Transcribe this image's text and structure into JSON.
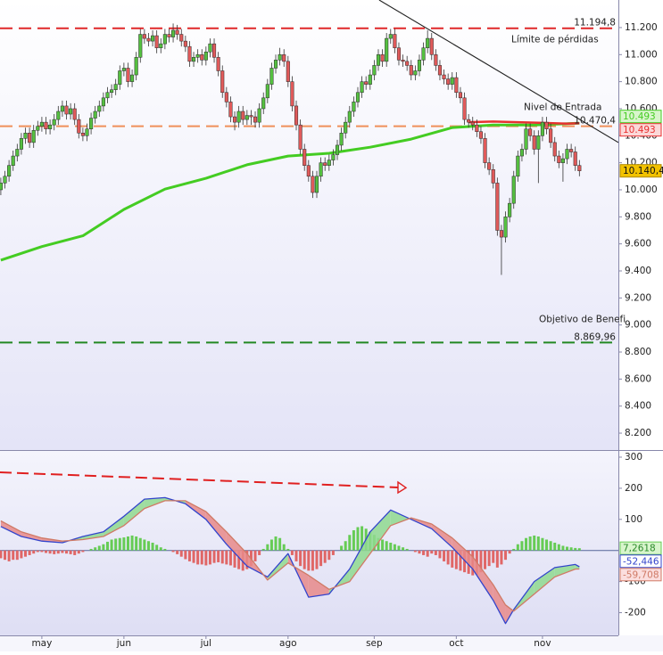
{
  "chart_data": [
    {
      "type": "candlestick",
      "xlim": [
        -0.2,
        150.5
      ],
      "ylim": [
        8075,
        11404
      ],
      "yticks": [
        {
          "value": 8200,
          "label": "8.200"
        },
        {
          "value": 8400,
          "label": "8.400"
        },
        {
          "value": 8600,
          "label": "8.600"
        },
        {
          "value": 8800,
          "label": "8.800"
        },
        {
          "value": 9000,
          "label": "9.000"
        },
        {
          "value": 9200,
          "label": "9.200"
        },
        {
          "value": 9400,
          "label": "9.400"
        },
        {
          "value": 9600,
          "label": "9.600"
        },
        {
          "value": 9800,
          "label": "9.800"
        },
        {
          "value": 10000,
          "label": "10.000"
        },
        {
          "value": 10200,
          "label": "10.200"
        },
        {
          "value": 10400,
          "label": "10.400"
        },
        {
          "value": 10600,
          "label": "10.600"
        },
        {
          "value": 10800,
          "label": "10.800"
        },
        {
          "value": 11000,
          "label": "11.000"
        },
        {
          "value": 11200,
          "label": "11.200"
        }
      ],
      "color_up": "#55c040",
      "color_down": "#e05a5a",
      "open": [
        10000,
        10050,
        10100,
        10180,
        10250,
        10300,
        10380,
        10420,
        10350,
        10440,
        10470,
        10500,
        10450,
        10480,
        10520,
        10580,
        10620,
        10560,
        10600,
        10520,
        10420,
        10400,
        10450,
        10530,
        10580,
        10620,
        10680,
        10720,
        10740,
        10780,
        10880,
        10900,
        10800,
        10850,
        10980,
        11150,
        11120,
        11100,
        11140,
        11050,
        11080,
        11150,
        11130,
        11180,
        11150,
        11100,
        11060,
        10950,
        10980,
        11000,
        10960,
        11020,
        11080,
        10980,
        10880,
        10720,
        10650,
        10540,
        10500,
        10580,
        10520,
        10550,
        10540,
        10500,
        10600,
        10680,
        10780,
        10900,
        10960,
        11000,
        10950,
        10800,
        10620,
        10480,
        10300,
        10180,
        10100,
        9980,
        10100,
        10200,
        10180,
        10220,
        10260,
        10330,
        10420,
        10500,
        10580,
        10650,
        10720,
        10800,
        10780,
        10850,
        10920,
        11000,
        10950,
        11120,
        11150,
        11050,
        10960,
        10950,
        10920,
        10850,
        10880,
        10960,
        11050,
        11120,
        11000,
        10920,
        10850,
        10820,
        10780,
        10830,
        10720,
        10680,
        10520,
        10500,
        10480,
        10430,
        10380,
        10200,
        10150,
        10050,
        9700,
        9650,
        9800,
        9900,
        10100,
        10250,
        10300,
        10450,
        10400,
        10300,
        10400,
        10500,
        10450,
        10350,
        10250,
        10200,
        10230,
        10300,
        10280,
        10180
      ],
      "high": [
        10090,
        10140,
        10220,
        10290,
        10340,
        10420,
        10460,
        10460,
        10480,
        10510,
        10540,
        10540,
        10520,
        10560,
        10620,
        10660,
        10660,
        10640,
        10640,
        10560,
        10460,
        10490,
        10570,
        10620,
        10660,
        10720,
        10760,
        10780,
        10820,
        10920,
        10940,
        10940,
        10890,
        11020,
        11190,
        11190,
        11160,
        11180,
        11180,
        11120,
        11190,
        11190,
        11230,
        11220,
        11190,
        11140,
        11100,
        11020,
        11040,
        11040,
        11060,
        11120,
        11120,
        11020,
        10920,
        10760,
        10690,
        10580,
        10620,
        10620,
        10590,
        10590,
        10580,
        10640,
        10720,
        10820,
        10940,
        11000,
        11050,
        11040,
        10990,
        10840,
        10660,
        10520,
        10340,
        10220,
        10140,
        10140,
        10240,
        10240,
        10260,
        10300,
        10370,
        10460,
        10540,
        10620,
        10690,
        10760,
        10840,
        10840,
        10890,
        10960,
        11040,
        11040,
        11160,
        11190,
        11190,
        11090,
        11000,
        10990,
        10960,
        10920,
        11000,
        11090,
        11180,
        11160,
        11040,
        10960,
        10890,
        10860,
        10870,
        10870,
        10760,
        10720,
        10560,
        10540,
        10520,
        10470,
        10420,
        10240,
        10190,
        10090,
        9740,
        9840,
        9940,
        10140,
        10290,
        10340,
        10490,
        10490,
        10440,
        10440,
        10540,
        10540,
        10490,
        10390,
        10290,
        10270,
        10340,
        10340,
        10320,
        10220
      ],
      "low": [
        9960,
        10010,
        10060,
        10140,
        10210,
        10260,
        10340,
        10310,
        10310,
        10400,
        10430,
        10410,
        10410,
        10440,
        10480,
        10540,
        10520,
        10520,
        10480,
        10380,
        10360,
        10360,
        10410,
        10490,
        10540,
        10580,
        10640,
        10680,
        10700,
        10740,
        10840,
        10760,
        10760,
        10810,
        10940,
        11080,
        11060,
        11060,
        11010,
        11010,
        11040,
        11090,
        11090,
        11110,
        11060,
        11020,
        10910,
        10910,
        10940,
        10920,
        10920,
        10980,
        10940,
        10840,
        10680,
        10610,
        10500,
        10440,
        10460,
        10480,
        10480,
        10480,
        10460,
        10460,
        10560,
        10640,
        10740,
        10860,
        10920,
        10910,
        10760,
        10580,
        10440,
        10260,
        10140,
        10060,
        9940,
        9940,
        10060,
        10140,
        10140,
        10180,
        10220,
        10290,
        10380,
        10460,
        10540,
        10610,
        10680,
        10740,
        10740,
        10810,
        10880,
        10910,
        10910,
        11080,
        11010,
        10920,
        10910,
        10880,
        10810,
        10810,
        10840,
        10920,
        11010,
        10960,
        10880,
        10810,
        10780,
        10740,
        10740,
        10680,
        10640,
        10480,
        10460,
        10440,
        10390,
        10340,
        10160,
        10110,
        10010,
        9660,
        9370,
        9610,
        9760,
        9860,
        10060,
        10210,
        10260,
        10360,
        10260,
        10050,
        10360,
        10410,
        10310,
        10210,
        10160,
        10060,
        10190,
        10240,
        10140,
        10100
      ],
      "close": [
        10050,
        10100,
        10180,
        10250,
        10300,
        10380,
        10420,
        10350,
        10440,
        10470,
        10500,
        10450,
        10480,
        10520,
        10580,
        10620,
        10560,
        10600,
        10520,
        10420,
        10400,
        10450,
        10530,
        10580,
        10620,
        10680,
        10720,
        10740,
        10780,
        10880,
        10900,
        10800,
        10850,
        10980,
        11150,
        11120,
        11100,
        11140,
        11050,
        11080,
        11150,
        11130,
        11180,
        11150,
        11100,
        11060,
        10950,
        10980,
        11000,
        10960,
        11020,
        11080,
        10980,
        10880,
        10720,
        10650,
        10540,
        10500,
        10580,
        10520,
        10550,
        10540,
        10500,
        10600,
        10680,
        10780,
        10900,
        10960,
        11000,
        10950,
        10800,
        10620,
        10480,
        10300,
        10180,
        10100,
        9980,
        10100,
        10200,
        10180,
        10220,
        10260,
        10330,
        10420,
        10500,
        10580,
        10650,
        10720,
        10800,
        10780,
        10850,
        10920,
        11000,
        10950,
        11120,
        11150,
        11050,
        10960,
        10950,
        10920,
        10850,
        10880,
        10960,
        11050,
        11120,
        11000,
        10920,
        10850,
        10820,
        10780,
        10830,
        10720,
        10680,
        10520,
        10500,
        10480,
        10430,
        10380,
        10200,
        10150,
        10050,
        9700,
        9650,
        9800,
        9900,
        10100,
        10250,
        10300,
        10450,
        10400,
        10300,
        10400,
        10500,
        10450,
        10350,
        10250,
        10200,
        10230,
        10300,
        10280,
        10180,
        10140.4
      ],
      "close_label": "10.140,4",
      "close_badge_color": "#f2c200",
      "series": [
        {
          "color": "#44cc22",
          "x": [
            0,
            10,
            20,
            30,
            40,
            50,
            60,
            70,
            80,
            90,
            100,
            110,
            120,
            130,
            141
          ],
          "values": [
            9480,
            9580,
            9660,
            9855,
            10005,
            10085,
            10185,
            10250,
            10270,
            10315,
            10375,
            10460,
            10480,
            10480,
            10493
          ],
          "last_label": "10.493"
        },
        {
          "color": "#e83030",
          "x": [
            114,
            120,
            126,
            132,
            138,
            141
          ],
          "values": [
            10500,
            10505,
            10500,
            10495,
            10490,
            10493
          ],
          "last_label": "10.493"
        }
      ],
      "trendline": {
        "color": "#222222",
        "x": [
          92.2,
          150.5
        ],
        "values": [
          11404,
          10350
        ]
      },
      "levels": [
        {
          "value": 11194.8,
          "label": "11.194,8",
          "text": "Límite de pérdidas",
          "color": "#e02828"
        },
        {
          "value": 10470.4,
          "label": "10.470,4",
          "text": "Nivel de Entrada",
          "color": "#f0905a"
        },
        {
          "value": 8869.96,
          "label": "8.869,96",
          "text": "Objetivo de Benefi",
          "color": "#228822"
        }
      ]
    },
    {
      "type": "macd",
      "xlim": [
        -0.2,
        150.5
      ],
      "ylim": [
        -273,
        320
      ],
      "yticks": [
        300,
        200,
        100,
        -100,
        -200
      ],
      "xticks": [
        {
          "value": 10,
          "label": "may"
        },
        {
          "value": 30,
          "label": "jun"
        },
        {
          "value": 50,
          "label": "jul"
        },
        {
          "value": 70,
          "label": "ago"
        },
        {
          "value": 91,
          "label": "sep"
        },
        {
          "value": 111,
          "label": "oct"
        },
        {
          "value": 132,
          "label": "nov"
        }
      ],
      "histogram": {
        "color_up": "#66cc55",
        "color_down": "#e06666",
        "last_label": "7,2618",
        "values": [
          -25,
          -30,
          -35,
          -30,
          -30,
          -25,
          -20,
          -15,
          -10,
          -5,
          -5,
          -8,
          -10,
          -12,
          -10,
          -8,
          -10,
          -12,
          -15,
          -10,
          -5,
          0,
          5,
          10,
          15,
          20,
          28,
          35,
          38,
          40,
          42,
          45,
          48,
          45,
          40,
          35,
          30,
          25,
          18,
          10,
          5,
          0,
          -5,
          -12,
          -20,
          -28,
          -35,
          -40,
          -45,
          -45,
          -48,
          -45,
          -40,
          -38,
          -42,
          -45,
          -48,
          -55,
          -60,
          -65,
          -60,
          -50,
          -35,
          -15,
          5,
          20,
          35,
          45,
          40,
          20,
          5,
          -15,
          -35,
          -50,
          -60,
          -65,
          -65,
          -60,
          -50,
          -40,
          -30,
          -15,
          0,
          15,
          30,
          50,
          65,
          75,
          78,
          70,
          60,
          50,
          40,
          35,
          30,
          25,
          20,
          15,
          10,
          5,
          0,
          -5,
          -10,
          -15,
          -20,
          -10,
          -15,
          -25,
          -35,
          -45,
          -55,
          -60,
          -65,
          -70,
          -75,
          -80,
          -78,
          -70,
          -60,
          -50,
          -40,
          -55,
          -45,
          -30,
          -10,
          5,
          20,
          30,
          40,
          45,
          48,
          45,
          40,
          35,
          30,
          25,
          20,
          15,
          12,
          10,
          8,
          7.2618
        ]
      },
      "series": [
        {
          "color": "#3344cc",
          "x": [
            0,
            5,
            10,
            15,
            20,
            25,
            30,
            35,
            40,
            45,
            50,
            55,
            60,
            65,
            70,
            75,
            80,
            85,
            90,
            95,
            100,
            105,
            110,
            115,
            120,
            123,
            125,
            130,
            135,
            140,
            141
          ],
          "values": [
            77,
            45,
            30,
            25,
            45,
            60,
            110,
            165,
            170,
            150,
            100,
            20,
            -50,
            -85,
            -10,
            -150,
            -140,
            -60,
            60,
            130,
            100,
            70,
            10,
            -60,
            -160,
            -235,
            -190,
            -100,
            -55,
            -45,
            -52.446
          ],
          "last_label": "-52,446"
        },
        {
          "color": "#d07a66",
          "x": [
            0,
            5,
            10,
            15,
            20,
            25,
            30,
            35,
            40,
            45,
            50,
            55,
            60,
            65,
            70,
            75,
            80,
            85,
            90,
            95,
            100,
            105,
            110,
            115,
            120,
            123,
            125,
            130,
            135,
            140,
            141
          ],
          "values": [
            95,
            60,
            40,
            30,
            35,
            45,
            80,
            135,
            160,
            160,
            125,
            60,
            -10,
            -95,
            -40,
            -80,
            -125,
            -100,
            -10,
            80,
            105,
            85,
            40,
            -20,
            -110,
            -175,
            -195,
            -140,
            -85,
            -60,
            -59.708
          ],
          "last_label": "-59,708"
        }
      ],
      "fill_up": "#8fd98f",
      "fill_down": "#e88a8a"
    }
  ]
}
